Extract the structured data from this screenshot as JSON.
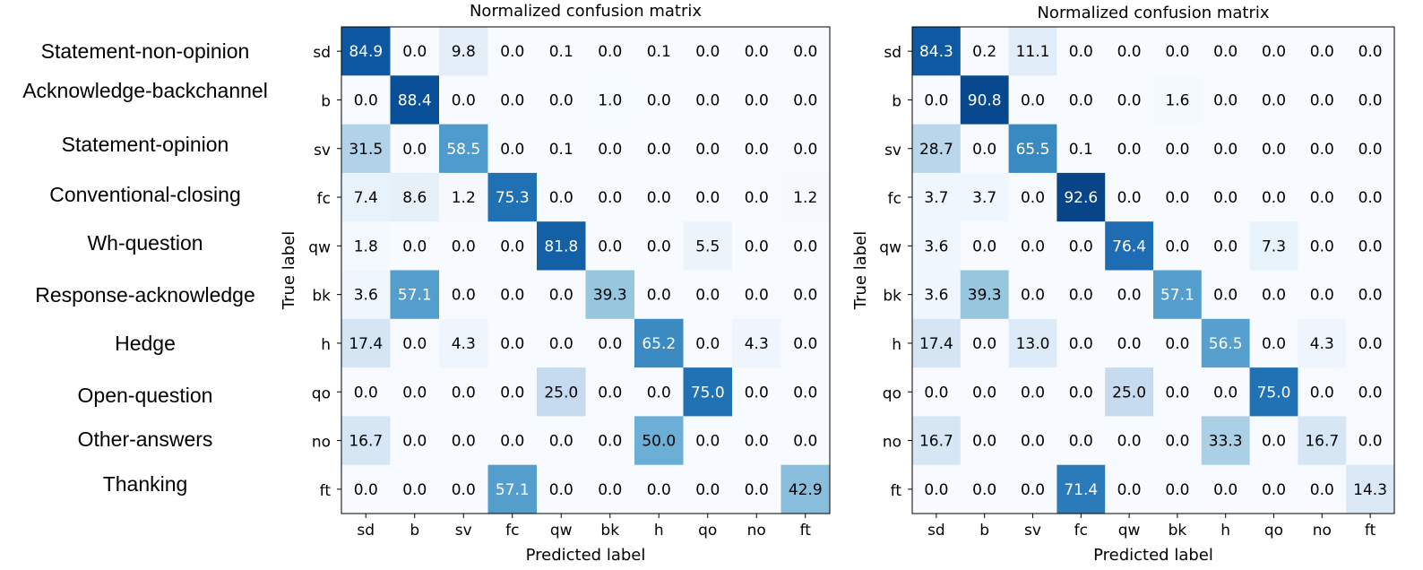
{
  "label_names": [
    "Statement-non-opinion",
    "Acknowledge-backchannel",
    "Statement-opinion",
    "Conventional-closing",
    "Wh-question",
    "Response-acknowledge",
    "Hedge",
    "Open-question",
    "Other-answers",
    "Thanking"
  ],
  "colors": {
    "low": "#f7fbff",
    "high": "#08306b",
    "dark_text": "#000000",
    "light_text": "#ffffff"
  },
  "chart_data": [
    {
      "type": "heatmap",
      "title": "Normalized confusion matrix",
      "xlabel": "Predicted label",
      "ylabel": "True label",
      "x_ticks": [
        "sd",
        "b",
        "sv",
        "fc",
        "qw",
        "bk",
        "h",
        "qo",
        "no",
        "ft"
      ],
      "y_ticks": [
        "sd",
        "b",
        "sv",
        "fc",
        "qw",
        "bk",
        "h",
        "qo",
        "no",
        "ft"
      ],
      "value_range": [
        0,
        100
      ],
      "values": [
        [
          84.9,
          0.0,
          9.8,
          0.0,
          0.1,
          0.0,
          0.1,
          0.0,
          0.0,
          0.0
        ],
        [
          0.0,
          88.4,
          0.0,
          0.0,
          0.0,
          1.0,
          0.0,
          0.0,
          0.0,
          0.0
        ],
        [
          31.5,
          0.0,
          58.5,
          0.0,
          0.1,
          0.0,
          0.0,
          0.0,
          0.0,
          0.0
        ],
        [
          7.4,
          8.6,
          1.2,
          75.3,
          0.0,
          0.0,
          0.0,
          0.0,
          0.0,
          1.2
        ],
        [
          1.8,
          0.0,
          0.0,
          0.0,
          81.8,
          0.0,
          0.0,
          5.5,
          0.0,
          0.0
        ],
        [
          3.6,
          57.1,
          0.0,
          0.0,
          0.0,
          39.3,
          0.0,
          0.0,
          0.0,
          0.0
        ],
        [
          17.4,
          0.0,
          4.3,
          0.0,
          0.0,
          0.0,
          65.2,
          0.0,
          4.3,
          0.0
        ],
        [
          0.0,
          0.0,
          0.0,
          0.0,
          25.0,
          0.0,
          0.0,
          75.0,
          0.0,
          0.0
        ],
        [
          16.7,
          0.0,
          0.0,
          0.0,
          0.0,
          0.0,
          50.0,
          0.0,
          0.0,
          0.0
        ],
        [
          0.0,
          0.0,
          0.0,
          57.1,
          0.0,
          0.0,
          0.0,
          0.0,
          0.0,
          42.9
        ]
      ]
    },
    {
      "type": "heatmap",
      "title": "Normalized confusion matrix",
      "xlabel": "Predicted label",
      "ylabel": "True label",
      "x_ticks": [
        "sd",
        "b",
        "sv",
        "fc",
        "qw",
        "bk",
        "h",
        "qo",
        "no",
        "ft"
      ],
      "y_ticks": [
        "sd",
        "b",
        "sv",
        "fc",
        "qw",
        "bk",
        "h",
        "qo",
        "no",
        "ft"
      ],
      "value_range": [
        0,
        100
      ],
      "values": [
        [
          84.3,
          0.2,
          11.1,
          0.0,
          0.0,
          0.0,
          0.0,
          0.0,
          0.0,
          0.0
        ],
        [
          0.0,
          90.8,
          0.0,
          0.0,
          0.0,
          1.6,
          0.0,
          0.0,
          0.0,
          0.0
        ],
        [
          28.7,
          0.0,
          65.5,
          0.1,
          0.0,
          0.0,
          0.0,
          0.0,
          0.0,
          0.0
        ],
        [
          3.7,
          3.7,
          0.0,
          92.6,
          0.0,
          0.0,
          0.0,
          0.0,
          0.0,
          0.0
        ],
        [
          3.6,
          0.0,
          0.0,
          0.0,
          76.4,
          0.0,
          0.0,
          7.3,
          0.0,
          0.0
        ],
        [
          3.6,
          39.3,
          0.0,
          0.0,
          0.0,
          57.1,
          0.0,
          0.0,
          0.0,
          0.0
        ],
        [
          17.4,
          0.0,
          13.0,
          0.0,
          0.0,
          0.0,
          56.5,
          0.0,
          4.3,
          0.0
        ],
        [
          0.0,
          0.0,
          0.0,
          0.0,
          25.0,
          0.0,
          0.0,
          75.0,
          0.0,
          0.0
        ],
        [
          16.7,
          0.0,
          0.0,
          0.0,
          0.0,
          0.0,
          33.3,
          0.0,
          16.7,
          0.0
        ],
        [
          0.0,
          0.0,
          0.0,
          71.4,
          0.0,
          0.0,
          0.0,
          0.0,
          0.0,
          14.3
        ]
      ]
    }
  ]
}
